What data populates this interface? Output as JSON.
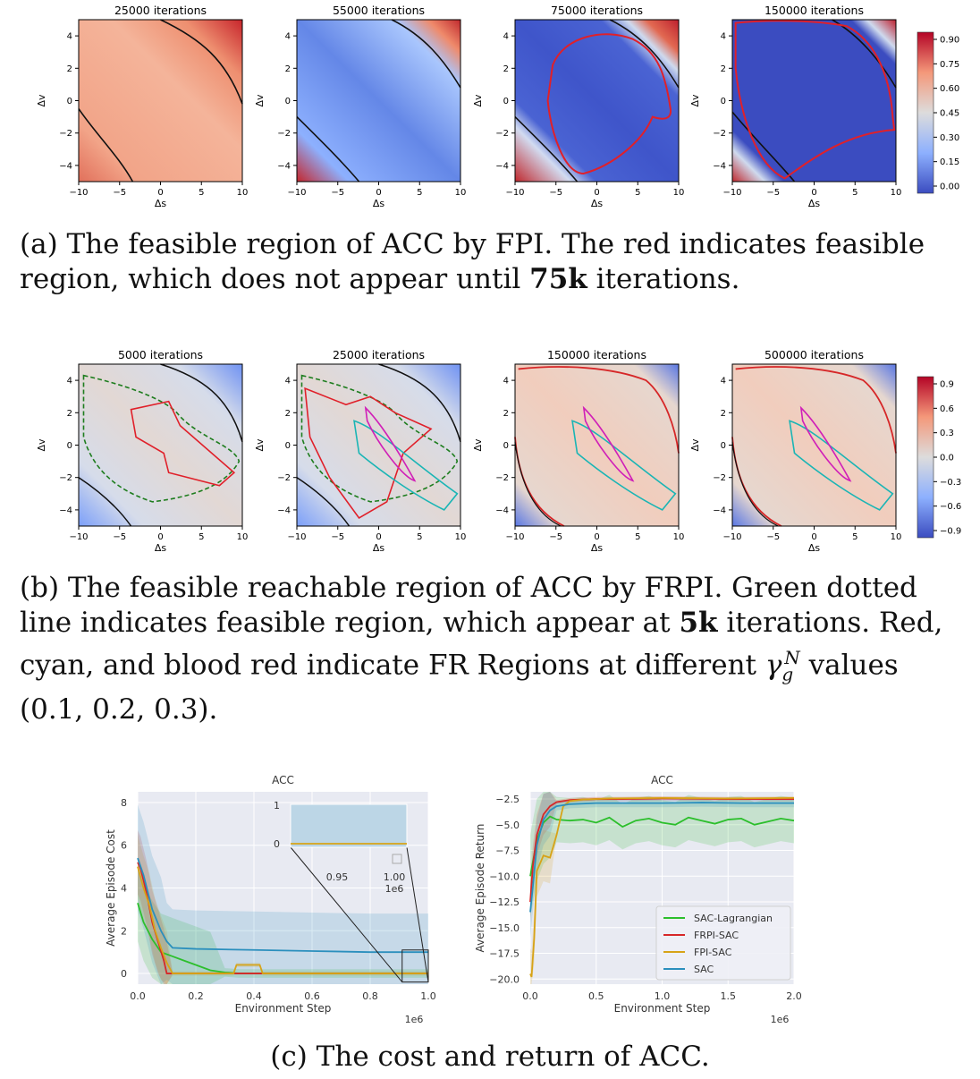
{
  "row_a": {
    "panels": [
      {
        "title": "25000 iterations",
        "state": "early"
      },
      {
        "title": "55000 iterations",
        "state": "mid"
      },
      {
        "title": "75000 iterations",
        "state": "feasible"
      },
      {
        "title": "150000 iterations",
        "state": "converged"
      }
    ],
    "xlabel": "Δs",
    "ylabel": "Δv",
    "xticks": [
      "−10",
      "−5",
      "0",
      "5",
      "10"
    ],
    "yticks": [
      "4",
      "2",
      "0",
      "−2",
      "−4"
    ],
    "colorbar": [
      "0.90",
      "0.75",
      "0.60",
      "0.45",
      "0.30",
      "0.15",
      "0.00"
    ],
    "caption_pre": "(a) The feasible region of ACC by FPI. The red indicates feasible region, which does not appear until ",
    "caption_bold": "75k",
    "caption_post": " iterations."
  },
  "row_b": {
    "panels": [
      {
        "title": "5000 iterations"
      },
      {
        "title": "25000 iterations"
      },
      {
        "title": "150000 iterations"
      },
      {
        "title": "500000 iterations"
      }
    ],
    "xlabel": "Δs",
    "ylabel": "Δv",
    "xticks": [
      "−10",
      "−5",
      "0",
      "5",
      "10"
    ],
    "yticks": [
      "4",
      "2",
      "0",
      "−2",
      "−4"
    ],
    "colorbar": [
      "0.9",
      "0.6",
      "0.3",
      "0.0",
      "−0.3",
      "−0.6",
      "−0.9"
    ],
    "caption_pre": "(b) The feasible reachable region of ACC by FRPI. Green dotted line indicates feasible region, which appear at ",
    "caption_bold": "5k",
    "caption_post": " iterations. Red, cyan, and blood red indicate FR Regions at different ",
    "caption_gamma": "γ",
    "caption_sub": "g",
    "caption_sup": "N",
    "caption_tail": " values (0.1, 0.2, 0.3)."
  },
  "colors": {
    "green": "#2cbf2c",
    "red": "#d62728",
    "orange": "#d7a317",
    "blue": "#2b8fbd",
    "hot": "#c0282d",
    "cold": "#3b4cc0",
    "panel_bg": "#e8eaf2"
  },
  "chart_data": [
    {
      "type": "line",
      "title": "ACC",
      "xlabel": "Environment Step",
      "ylabel": "Average Episode Cost",
      "x_multiplier": "1e6",
      "xlim": [
        0,
        1.0
      ],
      "ylim": [
        -0.5,
        8.5
      ],
      "xticks": [
        "0.0",
        "0.2",
        "0.4",
        "0.6",
        "0.8",
        "1.0"
      ],
      "yticks": [
        "0",
        "2",
        "4",
        "6",
        "8"
      ],
      "inset": {
        "xticks": [
          "0.95",
          "1.00"
        ],
        "yticks": [
          "0",
          "1"
        ],
        "x_multiplier": "1e6"
      },
      "series": [
        {
          "name": "SAC-Lagrangian",
          "color": "#2cbf2c",
          "x": [
            0,
            0.02,
            0.05,
            0.08,
            0.12,
            0.16,
            0.2,
            0.25,
            0.3,
            0.35,
            1.0
          ],
          "y": [
            3.3,
            2.4,
            1.6,
            1.0,
            0.8,
            0.6,
            0.4,
            0.15,
            0.05,
            0.0,
            0.0
          ]
        },
        {
          "name": "FRPI-SAC",
          "color": "#d62728",
          "x": [
            0,
            0.01,
            0.03,
            0.05,
            0.07,
            0.09,
            0.1,
            0.12,
            1.0
          ],
          "y": [
            5.2,
            4.9,
            3.8,
            2.4,
            1.5,
            0.6,
            0.0,
            0.0,
            0.0
          ]
        },
        {
          "name": "FPI-SAC",
          "color": "#d7a317",
          "x": [
            0,
            0.02,
            0.04,
            0.06,
            0.08,
            0.1,
            0.12,
            0.33,
            0.34,
            0.42,
            0.43,
            1.0
          ],
          "y": [
            5.0,
            4.0,
            3.2,
            2.0,
            1.2,
            0.5,
            0.0,
            0.0,
            0.4,
            0.4,
            0.0,
            0.0
          ]
        },
        {
          "name": "SAC",
          "color": "#2b8fbd",
          "x": [
            0,
            0.02,
            0.05,
            0.08,
            0.1,
            0.12,
            0.2,
            0.4,
            0.6,
            0.8,
            1.0
          ],
          "y": [
            5.4,
            4.6,
            3.0,
            2.0,
            1.5,
            1.2,
            1.15,
            1.1,
            1.05,
            1.0,
            1.0
          ]
        }
      ]
    },
    {
      "type": "line",
      "title": "ACC",
      "xlabel": "Environment Step",
      "ylabel": "Average Episode Return",
      "x_multiplier": "1e6",
      "xlim": [
        0,
        2.0
      ],
      "ylim": [
        -20.5,
        -1.8
      ],
      "xticks": [
        "0.0",
        "0.5",
        "1.0",
        "1.5",
        "2.0"
      ],
      "yticks": [
        "−2.5",
        "−5.0",
        "−7.5",
        "−10.0",
        "−12.5",
        "−15.0",
        "−17.5",
        "−20.0"
      ],
      "legend": "lower-right",
      "series": [
        {
          "name": "SAC-Lagrangian",
          "color": "#2cbf2c",
          "x": [
            0,
            0.05,
            0.1,
            0.15,
            0.2,
            0.3,
            0.4,
            0.5,
            0.6,
            0.7,
            0.8,
            0.9,
            1.0,
            1.1,
            1.2,
            1.3,
            1.4,
            1.5,
            1.6,
            1.7,
            1.8,
            1.9,
            2.0
          ],
          "y": [
            -10.0,
            -6.5,
            -4.8,
            -4.2,
            -4.5,
            -4.6,
            -4.5,
            -4.8,
            -4.3,
            -5.2,
            -4.6,
            -4.4,
            -4.8,
            -5.0,
            -4.3,
            -4.6,
            -4.9,
            -4.5,
            -4.4,
            -5.0,
            -4.7,
            -4.4,
            -4.6
          ]
        },
        {
          "name": "FRPI-SAC",
          "color": "#d62728",
          "x": [
            0,
            0.02,
            0.05,
            0.1,
            0.15,
            0.2,
            0.3,
            0.5,
            0.7,
            1.0,
            1.5,
            2.0
          ],
          "y": [
            -12.5,
            -9.0,
            -6.0,
            -4.0,
            -3.2,
            -2.8,
            -2.6,
            -2.5,
            -2.5,
            -2.45,
            -2.5,
            -2.5
          ]
        },
        {
          "name": "FPI-SAC",
          "color": "#d7a317",
          "x": [
            0,
            0.01,
            0.03,
            0.05,
            0.1,
            0.15,
            0.2,
            0.25,
            0.3,
            0.4,
            0.6,
            1.0,
            1.5,
            2.0
          ],
          "y": [
            -19.5,
            -19.8,
            -16.0,
            -9.5,
            -8.0,
            -8.2,
            -6.0,
            -3.2,
            -2.7,
            -2.55,
            -2.45,
            -2.4,
            -2.45,
            -2.4
          ]
        },
        {
          "name": "SAC",
          "color": "#2b8fbd",
          "x": [
            0,
            0.02,
            0.05,
            0.1,
            0.15,
            0.2,
            0.3,
            0.5,
            0.8,
            1.0,
            1.3,
            1.6,
            2.0
          ],
          "y": [
            -13.5,
            -11.0,
            -7.0,
            -4.5,
            -3.6,
            -3.2,
            -3.0,
            -2.9,
            -2.9,
            -2.9,
            -2.85,
            -2.9,
            -2.9
          ]
        }
      ]
    }
  ],
  "caption_c": "(c) The cost and return of ACC."
}
